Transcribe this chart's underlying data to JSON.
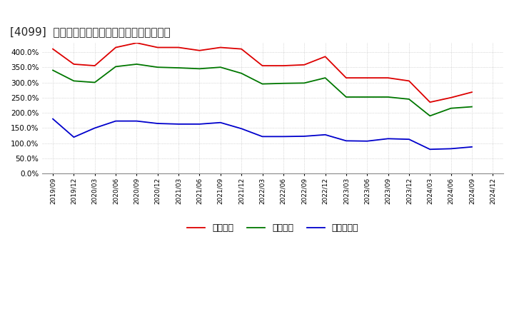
{
  "title": "[4099]  流動比率、当座比率、現顔金比率の推移",
  "x_labels": [
    "2019/09",
    "2019/12",
    "2020/03",
    "2020/06",
    "2020/09",
    "2020/12",
    "2021/03",
    "2021/06",
    "2021/09",
    "2021/12",
    "2022/03",
    "2022/06",
    "2022/09",
    "2022/12",
    "2023/03",
    "2023/06",
    "2023/09",
    "2023/12",
    "2024/03",
    "2024/06",
    "2024/09",
    "2024/12"
  ],
  "ryudo": [
    410,
    360,
    355,
    415,
    430,
    415,
    415,
    405,
    415,
    410,
    355,
    355,
    358,
    385,
    315,
    315,
    315,
    305,
    235,
    250,
    268,
    null
  ],
  "toza": [
    340,
    305,
    300,
    352,
    360,
    350,
    348,
    345,
    350,
    330,
    295,
    297,
    298,
    315,
    252,
    252,
    252,
    245,
    190,
    215,
    220,
    null
  ],
  "genyo": [
    180,
    120,
    150,
    173,
    173,
    165,
    163,
    163,
    168,
    148,
    122,
    122,
    123,
    128,
    108,
    107,
    115,
    113,
    80,
    82,
    88,
    null
  ],
  "line_colors": [
    "#dd0000",
    "#007700",
    "#0000cc"
  ],
  "legend_labels": [
    "流動比率",
    "当座比率",
    "現顔金比率"
  ],
  "ylim": [
    0,
    430
  ],
  "yticks": [
    0,
    50,
    100,
    150,
    200,
    250,
    300,
    350,
    400
  ],
  "background_color": "#ffffff",
  "grid_color": "#bbbbbb",
  "title_fontsize": 11
}
